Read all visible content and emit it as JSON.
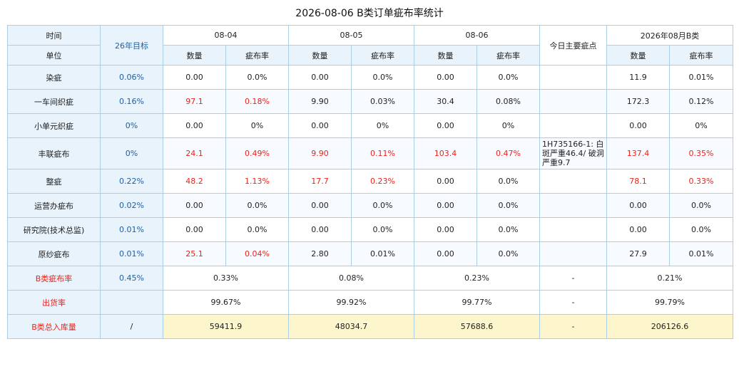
{
  "title": "2026-08-06 B类订单疵布率统计",
  "header": {
    "time_label": "时间",
    "unit_label": "单位",
    "target_label": "26年目标",
    "dates": [
      "08-04",
      "08-05",
      "08-06"
    ],
    "defects_label": "今日主要疵点",
    "month_label": "2026年08月B类",
    "qty_label": "数量",
    "rate_label": "疵布率"
  },
  "rows": [
    {
      "name": "染疵",
      "target": "0.06%",
      "cells": [
        [
          "0.00",
          "0.0%"
        ],
        [
          "0.00",
          "0.0%"
        ],
        [
          "0.00",
          "0.0%"
        ]
      ],
      "defect": "",
      "month": [
        "11.9",
        "0.01%"
      ],
      "red": [
        false,
        false,
        false,
        false,
        false,
        false,
        false,
        false
      ]
    },
    {
      "name": "一车间织疵",
      "target": "0.16%",
      "cells": [
        [
          "97.1",
          "0.18%"
        ],
        [
          "9.90",
          "0.03%"
        ],
        [
          "30.4",
          "0.08%"
        ]
      ],
      "defect": "",
      "month": [
        "172.3",
        "0.12%"
      ],
      "red": [
        true,
        true,
        false,
        false,
        false,
        false,
        false,
        false
      ]
    },
    {
      "name": "小单元织疵",
      "target": "0%",
      "cells": [
        [
          "0.00",
          "0%"
        ],
        [
          "0.00",
          "0%"
        ],
        [
          "0.00",
          "0%"
        ]
      ],
      "defect": "",
      "month": [
        "0.00",
        "0%"
      ],
      "red": [
        false,
        false,
        false,
        false,
        false,
        false,
        false,
        false
      ]
    },
    {
      "name": "丰联疵布",
      "target": "0%",
      "cells": [
        [
          "24.1",
          "0.49%"
        ],
        [
          "9.90",
          "0.11%"
        ],
        [
          "103.4",
          "0.47%"
        ]
      ],
      "defect": "1H735166-1: 白斑严重46.4/ 破洞严重9.7",
      "month": [
        "137.4",
        "0.35%"
      ],
      "red": [
        true,
        true,
        true,
        true,
        true,
        true,
        true,
        true
      ]
    },
    {
      "name": "整疵",
      "target": "0.22%",
      "cells": [
        [
          "48.2",
          "1.13%"
        ],
        [
          "17.7",
          "0.23%"
        ],
        [
          "0.00",
          "0.0%"
        ]
      ],
      "defect": "",
      "month": [
        "78.1",
        "0.33%"
      ],
      "red": [
        true,
        true,
        true,
        true,
        false,
        false,
        true,
        true
      ]
    },
    {
      "name": "运营办疵布",
      "target": "0.02%",
      "cells": [
        [
          "0.00",
          "0.0%"
        ],
        [
          "0.00",
          "0.0%"
        ],
        [
          "0.00",
          "0.0%"
        ]
      ],
      "defect": "",
      "month": [
        "0.00",
        "0.0%"
      ],
      "red": [
        false,
        false,
        false,
        false,
        false,
        false,
        false,
        false
      ]
    },
    {
      "name": "研究院(技术总监)",
      "target": "0.01%",
      "cells": [
        [
          "0.00",
          "0.0%"
        ],
        [
          "0.00",
          "0.0%"
        ],
        [
          "0.00",
          "0.0%"
        ]
      ],
      "defect": "",
      "month": [
        "0.00",
        "0.0%"
      ],
      "red": [
        false,
        false,
        false,
        false,
        false,
        false,
        false,
        false
      ]
    },
    {
      "name": "原纱疵布",
      "target": "0.01%",
      "cells": [
        [
          "25.1",
          "0.04%"
        ],
        [
          "2.80",
          "0.01%"
        ],
        [
          "0.00",
          "0.0%"
        ]
      ],
      "defect": "",
      "month": [
        "27.9",
        "0.01%"
      ],
      "red": [
        true,
        true,
        false,
        false,
        false,
        false,
        false,
        false
      ]
    }
  ],
  "summary": [
    {
      "name": "B类疵布率",
      "target": "0.45%",
      "values": [
        "0.33%",
        "0.08%",
        "0.23%"
      ],
      "defect": "-",
      "month": "0.21%"
    },
    {
      "name": "出货率",
      "target": "",
      "values": [
        "99.67%",
        "99.92%",
        "99.77%"
      ],
      "defect": "-",
      "month": "99.79%"
    },
    {
      "name": "B类总入库量",
      "target": "/",
      "values": [
        "59411.9",
        "48034.7",
        "57688.6"
      ],
      "defect": "-",
      "month": "206126.6"
    }
  ]
}
